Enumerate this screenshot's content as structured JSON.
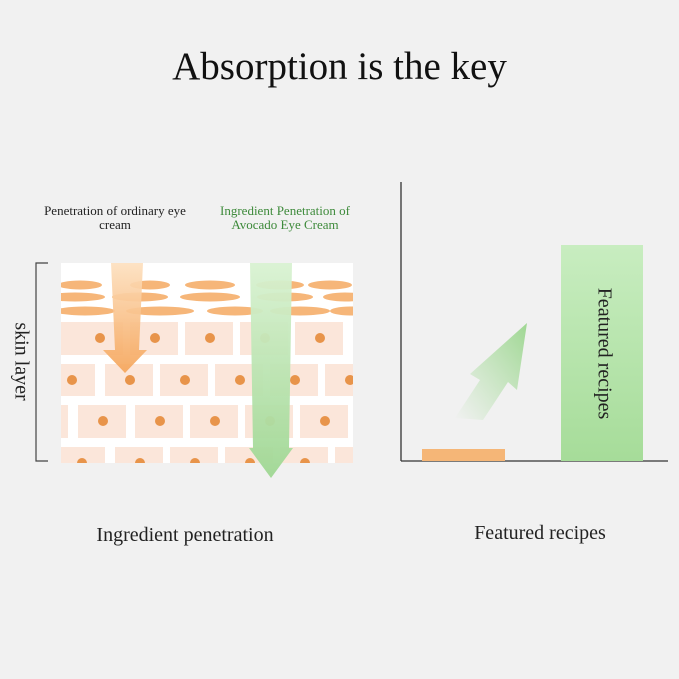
{
  "title": "Absorption is the key",
  "left_panel": {
    "ordinary_label": "Penetration of ordinary eye cream",
    "avocado_label": "Ingredient Penetration of Avocado Eye Cream",
    "skin_layer_label": "skin layer",
    "caption": "Ingredient penetration"
  },
  "right_panel": {
    "bar_label": "Featured recipes",
    "caption": "Featured recipes"
  },
  "colors": {
    "orange": "#f5a75c",
    "green": "#a8dc9c",
    "avocado_text": "#3d8a3a",
    "cell": "#fbe6da",
    "nucleus": "#e8944a"
  }
}
